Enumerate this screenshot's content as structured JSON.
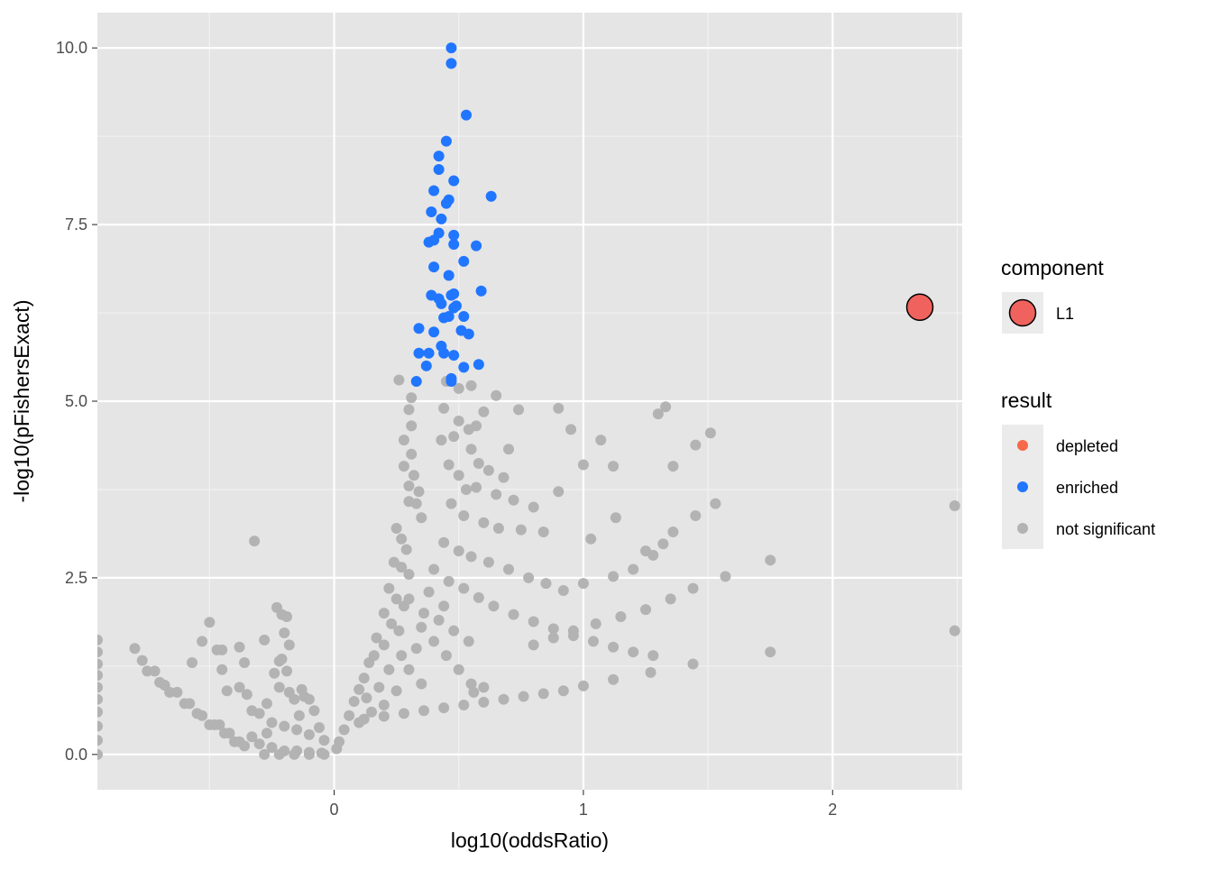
{
  "colors": {
    "panel_bg": "#e5e5e5",
    "grid_major": "#ffffff",
    "grid_minor": "#f2f2f2",
    "tick_text": "#4d4d4d",
    "depleted": "#f8694a",
    "enriched": "#2176ff",
    "not_significant": "#b3b3b3",
    "component_fill": "#f0625d",
    "legend_key_bg": "#ebebeb"
  },
  "chart_data": {
    "type": "scatter",
    "xlabel": "log10(oddsRatio)",
    "ylabel": "-log10(pFishersExact)",
    "xlim": [
      -0.95,
      2.52
    ],
    "ylim": [
      -0.5,
      10.5
    ],
    "grid": true,
    "x_ticks": [
      0,
      1,
      2
    ],
    "x_tick_labels": [
      "0",
      "1",
      "2"
    ],
    "y_ticks": [
      0,
      2.5,
      5,
      7.5,
      10
    ],
    "y_tick_labels": [
      "0.0",
      "2.5",
      "5.0",
      "7.5",
      "10.0"
    ],
    "legend_position": "right",
    "series": [
      {
        "name": "enriched",
        "color": "#2176ff",
        "points": [
          [
            0.47,
            10.0
          ],
          [
            0.47,
            9.78
          ],
          [
            0.53,
            9.05
          ],
          [
            0.45,
            8.68
          ],
          [
            0.42,
            8.47
          ],
          [
            0.42,
            8.28
          ],
          [
            0.48,
            8.12
          ],
          [
            0.63,
            7.9
          ],
          [
            0.4,
            7.98
          ],
          [
            0.46,
            7.85
          ],
          [
            0.45,
            7.8
          ],
          [
            0.39,
            7.68
          ],
          [
            0.43,
            7.58
          ],
          [
            0.48,
            7.35
          ],
          [
            0.42,
            7.38
          ],
          [
            0.38,
            7.25
          ],
          [
            0.4,
            7.28
          ],
          [
            0.48,
            7.22
          ],
          [
            0.57,
            7.2
          ],
          [
            0.52,
            6.98
          ],
          [
            0.4,
            6.9
          ],
          [
            0.46,
            6.78
          ],
          [
            0.59,
            6.56
          ],
          [
            0.39,
            6.5
          ],
          [
            0.42,
            6.45
          ],
          [
            0.48,
            6.52
          ],
          [
            0.47,
            6.5
          ],
          [
            0.43,
            6.38
          ],
          [
            0.48,
            6.32
          ],
          [
            0.49,
            6.35
          ],
          [
            0.52,
            6.2
          ],
          [
            0.44,
            6.18
          ],
          [
            0.46,
            6.2
          ],
          [
            0.34,
            6.03
          ],
          [
            0.4,
            5.98
          ],
          [
            0.51,
            6.0
          ],
          [
            0.54,
            5.95
          ],
          [
            0.43,
            5.78
          ],
          [
            0.34,
            5.68
          ],
          [
            0.38,
            5.68
          ],
          [
            0.44,
            5.68
          ],
          [
            0.48,
            5.65
          ],
          [
            0.37,
            5.5
          ],
          [
            0.52,
            5.48
          ],
          [
            0.58,
            5.52
          ],
          [
            0.33,
            5.28
          ],
          [
            0.47,
            5.32
          ],
          [
            0.47,
            5.28
          ]
        ]
      },
      {
        "name": "not significant",
        "color": "#b3b3b3",
        "points": [
          [
            -0.95,
            1.62
          ],
          [
            -0.95,
            1.45
          ],
          [
            -0.95,
            1.28
          ],
          [
            -0.95,
            1.12
          ],
          [
            -0.95,
            0.95
          ],
          [
            -0.95,
            0.78
          ],
          [
            -0.95,
            0.6
          ],
          [
            -0.95,
            0.4
          ],
          [
            -0.95,
            0.2
          ],
          [
            -0.95,
            0.0
          ],
          [
            -0.8,
            1.5
          ],
          [
            -0.77,
            1.33
          ],
          [
            -0.75,
            1.18
          ],
          [
            -0.72,
            1.18
          ],
          [
            -0.7,
            1.02
          ],
          [
            -0.68,
            0.98
          ],
          [
            -0.66,
            0.88
          ],
          [
            -0.63,
            0.88
          ],
          [
            -0.6,
            0.72
          ],
          [
            -0.58,
            0.72
          ],
          [
            -0.55,
            0.58
          ],
          [
            -0.53,
            0.55
          ],
          [
            -0.5,
            0.42
          ],
          [
            -0.48,
            0.42
          ],
          [
            -0.46,
            0.42
          ],
          [
            -0.44,
            0.3
          ],
          [
            -0.42,
            0.3
          ],
          [
            -0.4,
            0.18
          ],
          [
            -0.38,
            0.18
          ],
          [
            -0.36,
            0.12
          ],
          [
            -0.5,
            1.87
          ],
          [
            -0.53,
            1.6
          ],
          [
            -0.57,
            1.3
          ],
          [
            -0.45,
            1.48
          ],
          [
            -0.47,
            1.48
          ],
          [
            -0.38,
            1.52
          ],
          [
            -0.32,
            3.02
          ],
          [
            -0.28,
            1.62
          ],
          [
            -0.45,
            1.2
          ],
          [
            -0.36,
            1.3
          ],
          [
            -0.43,
            0.9
          ],
          [
            -0.38,
            0.95
          ],
          [
            -0.35,
            0.85
          ],
          [
            -0.33,
            0.62
          ],
          [
            -0.3,
            0.58
          ],
          [
            -0.27,
            0.72
          ],
          [
            -0.23,
            2.08
          ],
          [
            -0.21,
            1.98
          ],
          [
            -0.19,
            1.95
          ],
          [
            -0.2,
            1.72
          ],
          [
            -0.18,
            1.55
          ],
          [
            -0.22,
            1.32
          ],
          [
            -0.21,
            1.35
          ],
          [
            -0.19,
            1.18
          ],
          [
            -0.24,
            1.15
          ],
          [
            -0.22,
            0.95
          ],
          [
            -0.18,
            0.88
          ],
          [
            -0.16,
            0.78
          ],
          [
            -0.13,
            0.92
          ],
          [
            -0.12,
            0.82
          ],
          [
            -0.1,
            0.78
          ],
          [
            -0.08,
            0.62
          ],
          [
            -0.06,
            0.38
          ],
          [
            -0.04,
            0.2
          ],
          [
            -0.25,
            0.45
          ],
          [
            -0.2,
            0.4
          ],
          [
            -0.15,
            0.35
          ],
          [
            -0.1,
            0.28
          ],
          [
            -0.3,
            0.15
          ],
          [
            -0.25,
            0.1
          ],
          [
            -0.2,
            0.05
          ],
          [
            -0.15,
            0.05
          ],
          [
            -0.1,
            0.03
          ],
          [
            -0.05,
            0.02
          ],
          [
            -0.28,
            0.0
          ],
          [
            -0.22,
            0.0
          ],
          [
            -0.16,
            0.0
          ],
          [
            -0.1,
            0.0
          ],
          [
            -0.04,
            0.0
          ],
          [
            -0.33,
            0.25
          ],
          [
            -0.27,
            0.3
          ],
          [
            -0.14,
            0.55
          ],
          [
            0.26,
            5.3
          ],
          [
            0.31,
            5.05
          ],
          [
            0.3,
            4.88
          ],
          [
            0.31,
            4.65
          ],
          [
            0.28,
            4.45
          ],
          [
            0.31,
            4.25
          ],
          [
            0.28,
            4.08
          ],
          [
            0.32,
            3.95
          ],
          [
            0.3,
            3.8
          ],
          [
            0.34,
            3.72
          ],
          [
            0.3,
            3.58
          ],
          [
            0.33,
            3.55
          ],
          [
            0.35,
            3.35
          ],
          [
            0.25,
            3.2
          ],
          [
            0.27,
            3.05
          ],
          [
            0.29,
            2.9
          ],
          [
            0.24,
            2.72
          ],
          [
            0.27,
            2.65
          ],
          [
            0.3,
            2.55
          ],
          [
            0.22,
            2.35
          ],
          [
            0.25,
            2.2
          ],
          [
            0.28,
            2.1
          ],
          [
            0.2,
            2.0
          ],
          [
            0.23,
            1.85
          ],
          [
            0.26,
            1.75
          ],
          [
            0.17,
            1.65
          ],
          [
            0.2,
            1.55
          ],
          [
            0.16,
            1.4
          ],
          [
            0.14,
            1.3
          ],
          [
            0.12,
            1.08
          ],
          [
            0.1,
            0.92
          ],
          [
            0.08,
            0.75
          ],
          [
            0.06,
            0.55
          ],
          [
            0.04,
            0.35
          ],
          [
            0.02,
            0.18
          ],
          [
            0.01,
            0.08
          ],
          [
            0.45,
            5.28
          ],
          [
            0.5,
            5.18
          ],
          [
            0.55,
            5.22
          ],
          [
            0.65,
            5.08
          ],
          [
            0.6,
            4.85
          ],
          [
            0.44,
            4.9
          ],
          [
            0.5,
            4.72
          ],
          [
            0.57,
            4.65
          ],
          [
            0.54,
            4.6
          ],
          [
            0.43,
            4.45
          ],
          [
            0.48,
            4.5
          ],
          [
            0.55,
            4.32
          ],
          [
            0.58,
            4.12
          ],
          [
            0.62,
            4.02
          ],
          [
            0.7,
            4.32
          ],
          [
            0.74,
            4.88
          ],
          [
            0.68,
            3.92
          ],
          [
            0.46,
            4.1
          ],
          [
            0.5,
            3.95
          ],
          [
            0.53,
            3.75
          ],
          [
            0.57,
            3.78
          ],
          [
            0.65,
            3.68
          ],
          [
            0.72,
            3.6
          ],
          [
            0.8,
            3.5
          ],
          [
            0.9,
            3.72
          ],
          [
            0.47,
            3.55
          ],
          [
            0.52,
            3.38
          ],
          [
            0.6,
            3.28
          ],
          [
            0.66,
            3.2
          ],
          [
            0.75,
            3.18
          ],
          [
            0.84,
            3.15
          ],
          [
            0.44,
            3.0
          ],
          [
            0.5,
            2.88
          ],
          [
            0.55,
            2.8
          ],
          [
            0.62,
            2.72
          ],
          [
            0.7,
            2.62
          ],
          [
            0.78,
            2.5
          ],
          [
            0.85,
            2.42
          ],
          [
            0.92,
            2.32
          ],
          [
            0.4,
            2.62
          ],
          [
            0.46,
            2.45
          ],
          [
            0.52,
            2.35
          ],
          [
            0.58,
            2.22
          ],
          [
            0.64,
            2.1
          ],
          [
            0.72,
            1.98
          ],
          [
            0.8,
            1.88
          ],
          [
            0.88,
            1.78
          ],
          [
            0.96,
            1.68
          ],
          [
            1.04,
            1.6
          ],
          [
            1.12,
            1.52
          ],
          [
            1.2,
            1.45
          ],
          [
            1.28,
            1.4
          ],
          [
            0.95,
            4.6
          ],
          [
            1.07,
            4.45
          ],
          [
            1.0,
            4.1
          ],
          [
            1.12,
            4.08
          ],
          [
            1.3,
            4.82
          ],
          [
            1.33,
            4.92
          ],
          [
            1.45,
            4.38
          ],
          [
            1.51,
            4.55
          ],
          [
            1.36,
            4.08
          ],
          [
            0.9,
            4.9
          ],
          [
            1.03,
            3.05
          ],
          [
            1.13,
            3.35
          ],
          [
            1.25,
            2.88
          ],
          [
            1.36,
            3.15
          ],
          [
            1.45,
            3.38
          ],
          [
            1.53,
            3.55
          ],
          [
            1.0,
            2.42
          ],
          [
            1.12,
            2.52
          ],
          [
            1.2,
            2.62
          ],
          [
            1.28,
            2.82
          ],
          [
            1.32,
            2.98
          ],
          [
            1.57,
            2.52
          ],
          [
            1.75,
            2.75
          ],
          [
            1.44,
            2.35
          ],
          [
            1.35,
            2.2
          ],
          [
            1.25,
            2.05
          ],
          [
            1.15,
            1.95
          ],
          [
            1.05,
            1.85
          ],
          [
            0.96,
            1.75
          ],
          [
            0.88,
            1.65
          ],
          [
            0.8,
            1.55
          ],
          [
            1.75,
            1.45
          ],
          [
            1.44,
            1.28
          ],
          [
            1.27,
            1.16
          ],
          [
            1.12,
            1.06
          ],
          [
            1.0,
            0.97
          ],
          [
            0.92,
            0.9
          ],
          [
            0.84,
            0.86
          ],
          [
            0.76,
            0.82
          ],
          [
            0.68,
            0.78
          ],
          [
            0.6,
            0.74
          ],
          [
            0.52,
            0.7
          ],
          [
            0.44,
            0.66
          ],
          [
            0.36,
            0.62
          ],
          [
            0.28,
            0.58
          ],
          [
            0.2,
            0.54
          ],
          [
            0.12,
            0.5
          ],
          [
            0.56,
            0.88
          ],
          [
            2.49,
            3.52
          ],
          [
            2.49,
            1.75
          ],
          [
            0.35,
            1.8
          ],
          [
            0.4,
            1.6
          ],
          [
            0.45,
            1.4
          ],
          [
            0.5,
            1.2
          ],
          [
            0.55,
            1.0
          ],
          [
            0.6,
            0.95
          ],
          [
            0.3,
            1.2
          ],
          [
            0.35,
            1.0
          ],
          [
            0.25,
            0.9
          ],
          [
            0.2,
            0.7
          ],
          [
            0.15,
            0.6
          ],
          [
            0.1,
            0.45
          ],
          [
            0.3,
            2.2
          ],
          [
            0.36,
            2.0
          ],
          [
            0.42,
            1.9
          ],
          [
            0.48,
            1.75
          ],
          [
            0.54,
            1.6
          ],
          [
            0.38,
            2.3
          ],
          [
            0.44,
            2.1
          ],
          [
            0.33,
            1.5
          ],
          [
            0.27,
            1.4
          ],
          [
            0.22,
            1.2
          ],
          [
            0.18,
            0.95
          ],
          [
            0.13,
            0.8
          ]
        ]
      },
      {
        "name": "depleted",
        "color": "#f8694a",
        "points": []
      }
    ],
    "highlight": {
      "label": "L1",
      "x": 2.35,
      "y": 6.33
    },
    "legend": {
      "component_title": "component",
      "component_items": [
        "L1"
      ],
      "result_title": "result",
      "result_items": [
        "depleted",
        "enriched",
        "not significant"
      ]
    }
  }
}
